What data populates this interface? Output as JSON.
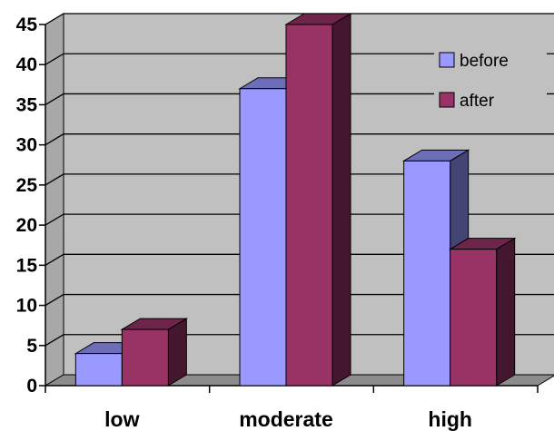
{
  "chart_data": {
    "type": "bar",
    "categories": [
      "low",
      "moderate",
      "high"
    ],
    "series": [
      {
        "name": "before",
        "values": [
          4,
          37,
          28
        ]
      },
      {
        "name": "after",
        "values": [
          7,
          45,
          17
        ]
      }
    ],
    "ylim": [
      0,
      45
    ],
    "yticks": [
      0,
      5,
      10,
      15,
      20,
      25,
      30,
      35,
      40,
      45
    ],
    "grid": true,
    "legend_position": "top-right",
    "three_d": true,
    "colors": {
      "before": "#9999ff",
      "after": "#993366",
      "plot_background": "#c0c0c0",
      "gridline": "#000000"
    }
  }
}
